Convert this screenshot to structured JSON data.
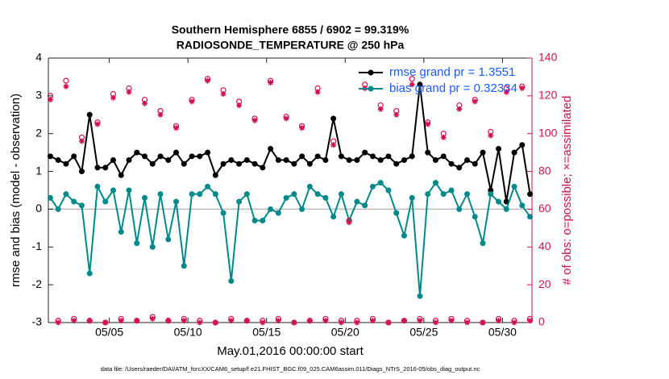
{
  "chart_data": {
    "type": "line",
    "title": "Southern Hemisphere 6855 / 6902 = 99.319%",
    "subtitle": "RADIOSONDE_TEMPERATURE @ 250 hPa",
    "xlabel": "May.01,2016 00:00:00 start",
    "ylabel": "rmse and bias (model - observation)",
    "y2label": "# of obs: o=possible; ×=assimilated",
    "footnote": "data file: /Users/raeder/DAI/ATM_forcXX/CAM6_setup/f.e21.FHIST_BGC.f09_025.CAM6assim.011/Diags_NTrS_2016-05/obs_diag_output.nc",
    "legend": "upper right",
    "legend_text_color": "#1a5cff",
    "y2_color": "#d1104f",
    "zero_line_color": "#bbbbbb",
    "xlim": [
      1.125,
      31.875
    ],
    "xticks": [
      {
        "value": 5,
        "label": "05/05"
      },
      {
        "value": 10,
        "label": "05/10"
      },
      {
        "value": 15,
        "label": "05/15"
      },
      {
        "value": 20,
        "label": "05/20"
      },
      {
        "value": 25,
        "label": "05/25"
      },
      {
        "value": 30,
        "label": "05/30"
      }
    ],
    "ylim": [
      -3,
      4
    ],
    "yticks": [
      -3,
      -2,
      -1,
      0,
      1,
      2,
      3,
      4
    ],
    "y2lim": [
      0,
      140
    ],
    "y2ticks": [
      0,
      20,
      40,
      60,
      80,
      100,
      120,
      140
    ],
    "x": [
      1.25,
      1.75,
      2.25,
      2.75,
      3.25,
      3.75,
      4.25,
      4.75,
      5.25,
      5.75,
      6.25,
      6.75,
      7.25,
      7.75,
      8.25,
      8.75,
      9.25,
      9.75,
      10.25,
      10.75,
      11.25,
      11.75,
      12.25,
      12.75,
      13.25,
      13.75,
      14.25,
      14.75,
      15.25,
      15.75,
      16.25,
      16.75,
      17.25,
      17.75,
      18.25,
      18.75,
      19.25,
      19.75,
      20.25,
      20.75,
      21.25,
      21.75,
      22.25,
      22.75,
      23.25,
      23.75,
      24.25,
      24.75,
      25.25,
      25.75,
      26.25,
      26.75,
      27.25,
      27.75,
      28.25,
      28.75,
      29.25,
      29.75,
      30.25,
      30.75,
      31.25,
      31.75
    ],
    "series": [
      {
        "name": "rmse grand pr = 1.3551",
        "color": "#000000",
        "marker": "dot",
        "values": [
          1.4,
          1.3,
          1.2,
          1.4,
          1.0,
          2.5,
          1.1,
          1.1,
          1.3,
          0.9,
          1.3,
          1.5,
          1.4,
          1.2,
          1.4,
          1.3,
          1.5,
          1.2,
          1.4,
          1.4,
          1.5,
          0.9,
          1.2,
          1.3,
          1.2,
          1.3,
          1.2,
          1.1,
          1.6,
          1.3,
          1.3,
          1.2,
          1.4,
          1.2,
          1.4,
          1.3,
          2.4,
          1.4,
          1.3,
          1.3,
          1.5,
          1.4,
          1.3,
          1.4,
          1.2,
          1.3,
          1.4,
          3.3,
          1.5,
          1.3,
          1.4,
          1.2,
          1.1,
          1.3,
          1.2,
          1.5,
          0.5,
          1.6,
          0.2,
          1.5,
          1.7,
          0.4
        ]
      },
      {
        "name": "bias grand pr = 0.32334",
        "color": "#00898a",
        "marker": "dot",
        "values": [
          0.3,
          0.0,
          0.4,
          0.2,
          0.1,
          -1.7,
          0.6,
          0.2,
          0.5,
          -0.6,
          0.5,
          -0.9,
          0.3,
          -1.0,
          0.4,
          -0.8,
          0.2,
          -1.5,
          0.4,
          0.4,
          0.6,
          0.4,
          -0.1,
          -1.9,
          0.2,
          0.4,
          -0.3,
          -0.3,
          0.0,
          -0.1,
          0.3,
          0.4,
          0.0,
          0.6,
          0.4,
          0.3,
          -0.2,
          0.4,
          -0.3,
          0.2,
          0.1,
          0.6,
          0.7,
          0.5,
          -0.1,
          -0.7,
          0.3,
          -2.3,
          0.4,
          0.7,
          0.4,
          0.5,
          0.0,
          0.4,
          -0.2,
          -0.9,
          0.4,
          0.2,
          0.0,
          0.6,
          0.1,
          -0.2
        ]
      },
      {
        "color": "#d1104f",
        "marker": "circle",
        "axis": "y2",
        "values": [
          120,
          1,
          128,
          2,
          98,
          1,
          106,
          0,
          121,
          2,
          124,
          1,
          118,
          3,
          112,
          1,
          104,
          2,
          118,
          1,
          129,
          0,
          123,
          2,
          117,
          1,
          108,
          1,
          128,
          2,
          109,
          0,
          104,
          1,
          124,
          2,
          96,
          1,
          54,
          1,
          126,
          2,
          115,
          0,
          112,
          1,
          129,
          2,
          106,
          1,
          100,
          2,
          115,
          1,
          118,
          0,
          101,
          2,
          124,
          1,
          125,
          2
        ]
      },
      {
        "color": "#d1104f",
        "marker": "star",
        "axis": "y2",
        "values": [
          118,
          0,
          125,
          1,
          96,
          1,
          105,
          0,
          119,
          1,
          122,
          1,
          116,
          2,
          110,
          1,
          103,
          1,
          117,
          0,
          128,
          0,
          121,
          1,
          115,
          1,
          107,
          0,
          127,
          1,
          108,
          0,
          103,
          1,
          122,
          1,
          94,
          0,
          53,
          0,
          124,
          1,
          113,
          0,
          110,
          1,
          126,
          1,
          105,
          0,
          98,
          1,
          113,
          0,
          117,
          0,
          99,
          1,
          122,
          0,
          124,
          1
        ]
      }
    ]
  }
}
